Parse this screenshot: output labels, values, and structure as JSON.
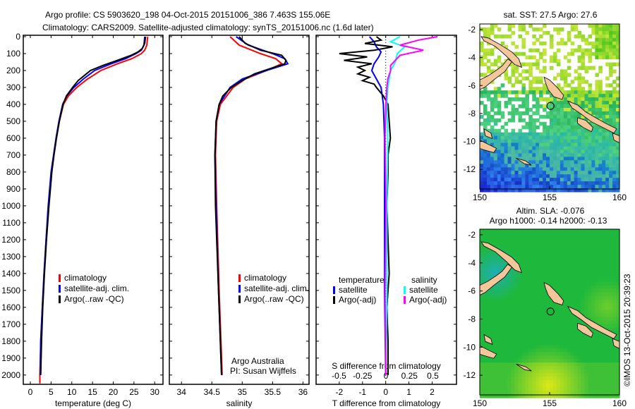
{
  "title": {
    "line1": "Argo profile: CS 5903620_198 04-Oct-2015 20151006_386 7.463S 155.06E",
    "line2": "Climatology: CARS2009. Satellite-adjusted climatology: synTS_20151006.nc (1.6d later)"
  },
  "colors": {
    "climatology": "#ff0000",
    "satellite": "#0000ff",
    "argo": "#000000",
    "sal_satellite": "#00ffff",
    "sal_argo": "#ff00ff",
    "land": "#f5c69a"
  },
  "depth_ticks": [
    0,
    100,
    200,
    300,
    400,
    500,
    600,
    700,
    800,
    900,
    1000,
    1100,
    1200,
    1300,
    1400,
    1500,
    1600,
    1700,
    1800,
    1900,
    2000
  ],
  "chart_data": [
    {
      "type": "line",
      "xlabel": "temperature (deg C)",
      "ylabel": "depth",
      "xlim": [
        -1.7,
        32
      ],
      "ylim": [
        2055,
        0
      ],
      "xticks": [
        0,
        5,
        10,
        15,
        20,
        25,
        30
      ],
      "legend": [
        "climatology",
        "satellite-adj. clim.",
        "Argo(..raw -QC)"
      ],
      "legend_placement": "bottom-center",
      "series": [
        {
          "name": "climatology",
          "depth": [
            0,
            50,
            80,
            100,
            130,
            160,
            200,
            250,
            300,
            350,
            400,
            500,
            600,
            700,
            800,
            1000,
            1200,
            1400,
            1600,
            1800,
            2000,
            2050
          ],
          "values": [
            28.3,
            28.1,
            27.6,
            26.8,
            24.5,
            21,
            17,
            13.8,
            11.2,
            9.2,
            8.0,
            7.0,
            6.3,
            5.7,
            5.1,
            4.4,
            3.8,
            3.3,
            2.9,
            2.5,
            2.3,
            2.3
          ]
        },
        {
          "name": "satellite-adj. clim.",
          "depth": [
            0,
            50,
            80,
            100,
            130,
            160,
            200,
            250,
            300,
            350,
            400,
            500,
            600,
            700,
            800,
            1000,
            1200,
            1400,
            1600,
            1800,
            2000
          ],
          "values": [
            27.6,
            27.4,
            26.8,
            25.5,
            23,
            19.5,
            15.5,
            12.8,
            10.5,
            8.8,
            7.8,
            6.9,
            6.2,
            5.6,
            5.0,
            4.3,
            3.8,
            3.3,
            2.9,
            2.5,
            2.4
          ]
        },
        {
          "name": "Argo(..raw -QC)",
          "depth": [
            0,
            40,
            70,
            90,
            110,
            140,
            170,
            200,
            230,
            260,
            300,
            350,
            400,
            500,
            600,
            700,
            800,
            1000,
            1200,
            1400,
            1600,
            1800,
            1900,
            2000
          ],
          "values": [
            27.8,
            27.6,
            27.0,
            26.0,
            24.3,
            21,
            17.5,
            14.5,
            13,
            11.5,
            10.2,
            8.7,
            7.9,
            7.0,
            6.3,
            5.7,
            5.2,
            4.5,
            3.9,
            3.4,
            3.0,
            2.7,
            2.6,
            2.5
          ]
        }
      ]
    },
    {
      "type": "line",
      "xlabel": "salinity",
      "xlim": [
        33.8,
        36.1
      ],
      "ylim": [
        2055,
        0
      ],
      "xticks": [
        34,
        34.5,
        35,
        35.5,
        36
      ],
      "legend": [
        "climatology",
        "satellite-adj. clim.",
        "Argo(..raw -QC)"
      ],
      "legend_placement": "bottom-right",
      "annotation": [
        "Argo Australia",
        "PI: Susan Wijffels"
      ],
      "series": [
        {
          "name": "climatology",
          "depth": [
            0,
            50,
            100,
            130,
            160,
            200,
            250,
            300,
            400,
            500,
            700,
            1000,
            1500,
            2000
          ],
          "values": [
            34.8,
            34.95,
            35.3,
            35.55,
            35.65,
            35.4,
            35.05,
            34.85,
            34.64,
            34.58,
            34.56,
            34.58,
            34.62,
            34.67
          ]
        },
        {
          "name": "satellite-adj. clim.",
          "depth": [
            0,
            50,
            100,
            130,
            160,
            200,
            250,
            300,
            400,
            500,
            700,
            1000,
            1500,
            2000
          ],
          "values": [
            34.9,
            35.1,
            35.5,
            35.7,
            35.75,
            35.4,
            35.0,
            34.8,
            34.62,
            34.57,
            34.55,
            34.57,
            34.61,
            34.66
          ]
        },
        {
          "name": "Argo(..raw -QC)",
          "depth": [
            0,
            40,
            80,
            110,
            140,
            160,
            190,
            220,
            260,
            300,
            350,
            400,
            500,
            700,
            1000,
            1500,
            2000
          ],
          "values": [
            34.95,
            35.05,
            35.3,
            35.65,
            35.72,
            35.7,
            35.45,
            35.2,
            35.0,
            34.82,
            34.68,
            34.62,
            34.57,
            34.55,
            34.56,
            34.61,
            34.66
          ]
        }
      ]
    },
    {
      "type": "line",
      "xlabel": "T difference from climatology",
      "xlabel2": "S difference from climatology",
      "xlim": [
        -3,
        3.05
      ],
      "ylim": [
        2055,
        0
      ],
      "xticks": [
        -2,
        -1,
        0,
        1,
        2
      ],
      "xticks2": [
        -0.5,
        -0.25,
        0,
        0.25,
        0.5
      ],
      "xticks2_labels": [
        "-0.5",
        "-0.25",
        "0",
        "0.25",
        "0.5"
      ],
      "legend": {
        "temperature_header": "temperature",
        "salinity_header": "salinity",
        "t_satellite": "satellite",
        "t_argo": "Argo(-adj)",
        "s_satellite": "satellite",
        "s_argo": "Argo(-adj)"
      },
      "series": [
        {
          "name": "temperature satellite",
          "units": "degC",
          "depth": [
            0,
            30,
            60,
            90,
            120,
            160,
            200,
            300,
            400,
            600,
            1000,
            1500,
            2000
          ],
          "values": [
            -0.7,
            -0.5,
            -0.4,
            -0.2,
            -0.3,
            -0.5,
            -0.6,
            -0.2,
            -0.1,
            -0.05,
            -0.05,
            -0.05,
            0
          ]
        },
        {
          "name": "temperature Argo(-adj)",
          "units": "degC",
          "depth": [
            0,
            20,
            40,
            60,
            80,
            100,
            120,
            140,
            160,
            180,
            200,
            220,
            240,
            260,
            280,
            300,
            350,
            400,
            500,
            600,
            700,
            800,
            1000,
            1200,
            1400,
            1600,
            1800,
            2000
          ],
          "values": [
            -0.4,
            -0.2,
            -0.9,
            0.3,
            -0.5,
            -2.0,
            -0.8,
            -1.8,
            -0.6,
            -1.2,
            -0.9,
            -1.2,
            -0.7,
            -1.0,
            -0.5,
            -0.4,
            -0.1,
            0.1,
            0.15,
            0.2,
            0.1,
            0.1,
            0.05,
            0.1,
            0.15,
            0.05,
            0.1,
            0.1
          ]
        },
        {
          "name": "salinity satellite",
          "units": "psu",
          "depth": [
            0,
            30,
            60,
            100,
            150,
            200,
            300,
            400,
            600,
            1000,
            1500,
            2000
          ],
          "values": [
            0.15,
            0.05,
            0.2,
            0.12,
            0.1,
            0.05,
            0.02,
            0.01,
            0.02,
            0.01,
            0.01,
            0
          ],
          "note": "plotted on S axis"
        },
        {
          "name": "salinity Argo(-adj)",
          "units": "psu",
          "depth": [
            0,
            20,
            50,
            80,
            110,
            140,
            170,
            200,
            250,
            300,
            400,
            600,
            1000,
            1500,
            2000
          ],
          "values": [
            0.55,
            0.35,
            0.15,
            0.4,
            0.15,
            0.1,
            0.05,
            0.05,
            0.02,
            0.01,
            0,
            -0.01,
            0,
            -0.01,
            0
          ]
        }
      ]
    }
  ],
  "maps": {
    "sst": {
      "title": "sat. SST: 27.5 Argo: 27.6"
    },
    "sla": {
      "title1": "Altim. SLA: -0.076",
      "title2": "Argo h1000: -0.14 h2000: -0.13"
    },
    "lon_ticks": [
      150,
      155,
      160
    ],
    "lat_ticks": [
      -2,
      -4,
      -6,
      -8,
      -10,
      -12
    ],
    "profile_lon": 155.06,
    "profile_lat": -7.463
  },
  "credit": "©IMOS 13-Oct-2015 20:39:23"
}
